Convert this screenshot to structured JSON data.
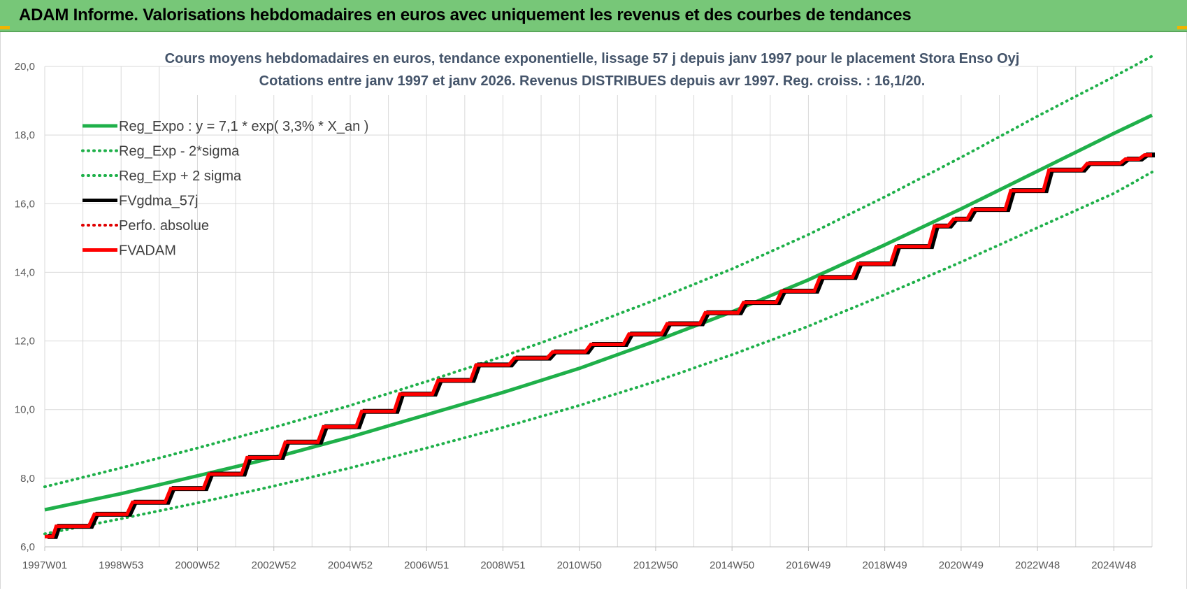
{
  "header": {
    "title": "ADAM Informe. Valorisations hebdomadaires en euros avec uniquement les revenus et des courbes de tendances"
  },
  "colors": {
    "header_bg": "#77c778",
    "reg_expo": "#1fb04a",
    "sigma_bands": "#1fb04a",
    "fvgdma": "#000000",
    "perfo_absolue": "#e00000",
    "fvadam": "#ff0000",
    "title_text": "#44546a"
  },
  "chart_data": {
    "type": "line",
    "title": "Cours moyens hebdomadaires en euros, tendance exponentielle, lissage 57 j depuis janv 1997  pour le placement Stora Enso Oyj",
    "subtitle": "Cotations entre janv 1997 et janv 2026. Revenus DISTRIBUES depuis avr 1997.  Reg. croiss. : 16,1/20.",
    "xlabel": "",
    "ylabel": "",
    "ylim": [
      6.0,
      20.0
    ],
    "xlim": [
      1997.0,
      2026.0
    ],
    "y_ticks": [
      6.0,
      8.0,
      10.0,
      12.0,
      14.0,
      16.0,
      18.0,
      20.0
    ],
    "y_tick_labels": [
      "6,0",
      "8,0",
      "10,0",
      "12,0",
      "14,0",
      "16,0",
      "18,0",
      "20,0"
    ],
    "x_ticks": [
      1997.0,
      1999.0,
      2001.0,
      2003.0,
      2005.0,
      2007.0,
      2009.0,
      2011.0,
      2013.0,
      2015.0,
      2017.0,
      2019.0,
      2021.0,
      2023.0,
      2025.0
    ],
    "x_tick_labels": [
      "1997W01",
      "1998W53",
      "2000W52",
      "2002W52",
      "2004W52",
      "2006W51",
      "2008W51",
      "2010W50",
      "2012W50",
      "2014W50",
      "2016W49",
      "2018W49",
      "2020W49",
      "2022W48",
      "2024W48"
    ],
    "grid": true,
    "legend_position": "top-left",
    "legend": [
      {
        "label": "Reg_Expo : y = 7,1 * exp( 3,3% *  X_an )",
        "style": "solid",
        "color": "#1fb04a"
      },
      {
        "label": "Reg_Exp - 2*sigma",
        "style": "dotted",
        "color": "#1fb04a"
      },
      {
        "label": "Reg_Exp + 2 sigma",
        "style": "dotted",
        "color": "#1fb04a"
      },
      {
        "label": "FVgdma_57j",
        "style": "solid",
        "color": "#000000"
      },
      {
        "label": "Perfo. absolue",
        "style": "dotted",
        "color": "#e00000"
      },
      {
        "label": "FVADAM",
        "style": "solid",
        "color": "#ff0000"
      }
    ],
    "series": [
      {
        "name": "Reg_Expo : y = 7,1 * exp( 3,3% *  X_an )",
        "x": [
          1997,
          1999,
          2001,
          2003,
          2005,
          2007,
          2009,
          2011,
          2013,
          2015,
          2017,
          2019,
          2021,
          2023,
          2025,
          2026
        ],
        "values": [
          7.08,
          7.55,
          8.07,
          8.6,
          9.2,
          9.85,
          10.5,
          11.2,
          12.0,
          12.85,
          13.78,
          14.8,
          15.85,
          16.95,
          18.05,
          18.58
        ]
      },
      {
        "name": "Reg_Exp - 2*sigma",
        "x": [
          1997,
          1999,
          2001,
          2003,
          2005,
          2007,
          2009,
          2011,
          2013,
          2015,
          2017,
          2019,
          2021,
          2023,
          2025,
          2026
        ],
        "values": [
          6.38,
          6.82,
          7.28,
          7.77,
          8.3,
          8.88,
          9.48,
          10.12,
          10.82,
          11.6,
          12.43,
          13.35,
          14.3,
          15.3,
          16.3,
          16.92
        ]
      },
      {
        "name": "Reg_Exp + 2 sigma",
        "x": [
          1997,
          1999,
          2001,
          2003,
          2005,
          2007,
          2009,
          2011,
          2013,
          2015,
          2017,
          2019,
          2021,
          2023,
          2025,
          2026
        ],
        "values": [
          7.75,
          8.3,
          8.88,
          9.48,
          10.12,
          10.82,
          11.55,
          12.35,
          13.2,
          14.1,
          15.1,
          16.2,
          17.35,
          18.55,
          19.7,
          20.3
        ]
      },
      {
        "name": "FVADAM",
        "x": [
          1997.0,
          1997.3,
          1998.3,
          1999.3,
          2000.3,
          2001.3,
          2002.3,
          2003.3,
          2004.3,
          2005.3,
          2006.3,
          2007.3,
          2008.3,
          2009.3,
          2010.3,
          2011.3,
          2012.3,
          2013.3,
          2014.3,
          2015.3,
          2016.3,
          2017.3,
          2018.3,
          2019.3,
          2020.3,
          2020.8,
          2021.3,
          2022.3,
          2023.3,
          2024.3,
          2025.3,
          2025.8,
          2026.0
        ],
        "values": [
          6.3,
          6.6,
          6.95,
          7.3,
          7.7,
          8.12,
          8.6,
          9.05,
          9.5,
          9.95,
          10.45,
          10.85,
          11.3,
          11.5,
          11.68,
          11.9,
          12.2,
          12.5,
          12.82,
          13.12,
          13.45,
          13.85,
          14.25,
          14.75,
          15.35,
          15.55,
          15.83,
          16.38,
          16.98,
          17.17,
          17.3,
          17.42,
          17.42
        ]
      }
    ]
  }
}
